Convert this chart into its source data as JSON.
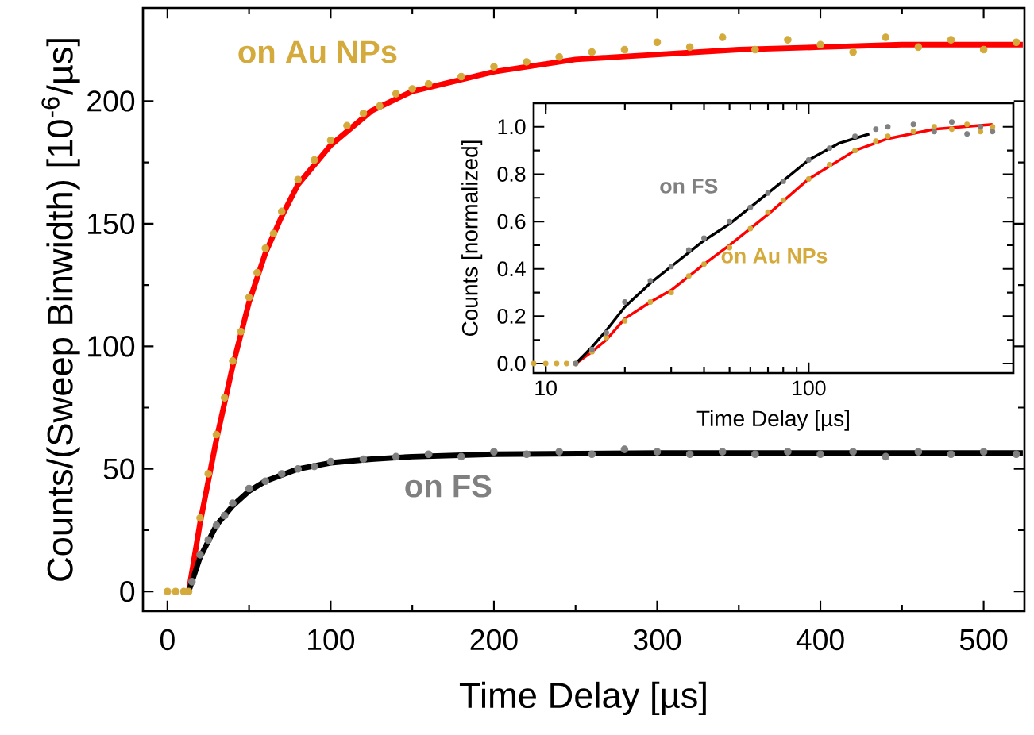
{
  "chart_data": [
    {
      "type": "scatter",
      "xlabel": "Time Delay [µs]",
      "ylabel": "Counts/(Sweep Binwidth) [10$^{-6}$/µs]",
      "xlim": [
        -15,
        525
      ],
      "ylim": [
        -8,
        238
      ],
      "xticks": [
        0,
        100,
        200,
        300,
        400,
        500
      ],
      "yticks": [
        0,
        50,
        100,
        150,
        200
      ],
      "grid": false,
      "series": [
        {
          "name": "on Au NPs",
          "type": "scatter",
          "marker": "circle",
          "color": "#d4aa3c",
          "x": [
            0,
            5,
            10,
            13,
            20,
            25,
            30,
            35,
            40,
            45,
            50,
            55,
            60,
            65,
            70,
            80,
            90,
            100,
            110,
            120,
            130,
            140,
            150,
            160,
            180,
            200,
            220,
            240,
            260,
            280,
            300,
            320,
            340,
            360,
            380,
            400,
            420,
            440,
            460,
            480,
            500,
            520
          ],
          "values": [
            0,
            0,
            0,
            0,
            30,
            48,
            64,
            79,
            94,
            106,
            120,
            130,
            140,
            146,
            155,
            168,
            176,
            184,
            190,
            195,
            198,
            203,
            205,
            207,
            210,
            214,
            216,
            218,
            220,
            221,
            224,
            222,
            226,
            221,
            225,
            223,
            220,
            226,
            222,
            225,
            221,
            224
          ]
        },
        {
          "name": "on FS",
          "type": "scatter",
          "marker": "circle",
          "color": "#808080",
          "x": [
            15,
            20,
            25,
            30,
            35,
            40,
            50,
            60,
            70,
            80,
            90,
            100,
            120,
            140,
            160,
            180,
            200,
            220,
            240,
            260,
            280,
            300,
            320,
            340,
            360,
            380,
            400,
            420,
            440,
            460,
            480,
            500,
            520
          ],
          "values": [
            4,
            15,
            21,
            27,
            31,
            36,
            42,
            45,
            48,
            50,
            51,
            53,
            54,
            55,
            56,
            55,
            57,
            56,
            57,
            56,
            58,
            57,
            56,
            57,
            56,
            57,
            56,
            57,
            55,
            57,
            56,
            57,
            56
          ]
        },
        {
          "type": "line",
          "marker": "none",
          "color": "#ff0000",
          "x": [
            13,
            20,
            30,
            40,
            50,
            60,
            70,
            80,
            100,
            125,
            150,
            200,
            250,
            300,
            350,
            400,
            450,
            500,
            524
          ],
          "values": [
            0,
            28,
            62,
            92,
            118,
            138,
            153,
            166,
            182,
            196,
            204,
            212,
            217,
            219,
            221,
            222,
            223,
            223,
            223
          ]
        },
        {
          "type": "line",
          "marker": "none",
          "color": "#000000",
          "x": [
            13,
            20,
            30,
            40,
            50,
            60,
            80,
            100,
            125,
            150,
            200,
            300,
            400,
            524
          ],
          "values": [
            0,
            14,
            27,
            35,
            41,
            45,
            50,
            52.5,
            54,
            55,
            56,
            56.5,
            56.5,
            56.5
          ]
        }
      ]
    },
    {
      "type": "scatter",
      "xlabel": "Time Delay [µs]",
      "ylabel": "Counts [normalized]",
      "log": "x",
      "xlim": [
        9,
        600
      ],
      "ylim": [
        -0.04,
        1.1
      ],
      "xticks": [
        10,
        100
      ],
      "yticks": [
        {
          "value": 0,
          "label": "0.0"
        },
        {
          "value": 0.2,
          "label": "0.2"
        },
        {
          "value": 0.4,
          "label": "0.4"
        },
        {
          "value": 0.6,
          "label": "0.6"
        },
        {
          "value": 0.8,
          "label": "0.8"
        },
        {
          "value": 1,
          "label": "1.0"
        }
      ],
      "grid": false,
      "series": [
        {
          "name": "on Au NPs",
          "type": "scatter",
          "marker": "circle",
          "color": "#d4aa3c",
          "x": [
            9,
            10,
            11,
            12,
            13,
            15,
            17,
            20,
            25,
            30,
            35,
            40,
            50,
            60,
            70,
            80,
            100,
            120,
            150,
            180,
            200,
            250,
            300,
            350,
            400,
            450,
            500
          ],
          "values": [
            0,
            0,
            0,
            0,
            0,
            0.05,
            0.11,
            0.18,
            0.26,
            0.3,
            0.37,
            0.42,
            0.49,
            0.57,
            0.64,
            0.69,
            0.78,
            0.84,
            0.9,
            0.94,
            0.96,
            0.98,
            1.0,
            0.99,
            1.01,
            0.98,
            1.0
          ]
        },
        {
          "name": "on FS",
          "type": "scatter",
          "marker": "circle",
          "color": "#808080",
          "x": [
            13,
            15,
            17,
            20,
            25,
            30,
            35,
            40,
            50,
            60,
            70,
            80,
            100,
            120,
            150,
            180,
            200,
            250,
            300,
            350,
            400,
            450,
            500
          ],
          "values": [
            0,
            0.06,
            0.13,
            0.26,
            0.35,
            0.41,
            0.48,
            0.53,
            0.6,
            0.66,
            0.72,
            0.77,
            0.86,
            0.91,
            0.96,
            0.99,
            1.0,
            1.01,
            0.98,
            1.02,
            0.97,
            1.0,
            0.98
          ]
        },
        {
          "type": "line",
          "marker": "none",
          "color": "#ff0000",
          "x": [
            13,
            15,
            17,
            20,
            25,
            30,
            40,
            50,
            70,
            100,
            150,
            200,
            300,
            500
          ],
          "values": [
            0,
            0.05,
            0.1,
            0.19,
            0.26,
            0.31,
            0.42,
            0.5,
            0.63,
            0.78,
            0.9,
            0.95,
            0.99,
            1.01
          ]
        },
        {
          "type": "line",
          "marker": "none",
          "color": "#000000",
          "x": [
            13,
            15,
            17,
            20,
            25,
            30,
            40,
            50,
            70,
            100,
            130,
            170
          ],
          "values": [
            0,
            0.07,
            0.14,
            0.24,
            0.34,
            0.41,
            0.52,
            0.59,
            0.72,
            0.86,
            0.93,
            0.97
          ]
        }
      ]
    }
  ]
}
